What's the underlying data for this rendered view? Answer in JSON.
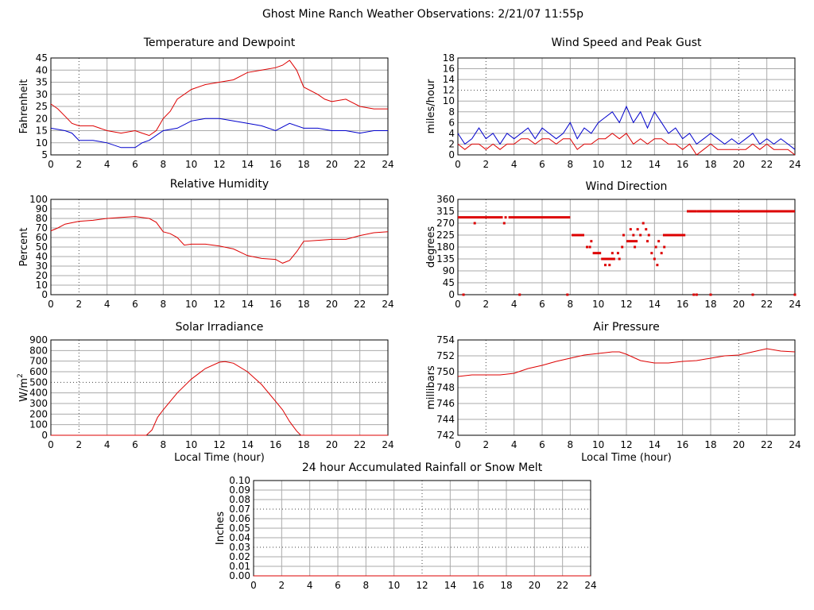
{
  "title": "Ghost Mine Ranch Weather Observations: 2/21/07 11:55p",
  "colors": {
    "grid": "#aaaaaa",
    "red": "#dd0000",
    "blue": "#0000cc",
    "axis": "#000000"
  },
  "chart_data": [
    {
      "id": "temp",
      "type": "line",
      "title": "Temperature and Dewpoint",
      "ylabel": "Fahrenheit",
      "xlabel": "",
      "xlim": [
        0,
        24
      ],
      "ylim": [
        5,
        45
      ],
      "xticks": [
        0,
        2,
        4,
        6,
        8,
        10,
        12,
        14,
        16,
        18,
        20,
        22,
        24
      ],
      "yticks": [
        5,
        10,
        15,
        20,
        25,
        30,
        35,
        40,
        45
      ],
      "series": [
        {
          "color": "red",
          "x": [
            0,
            0.5,
            1,
            1.5,
            2,
            3,
            4,
            5,
            6,
            6.5,
            7,
            7.5,
            8,
            8.5,
            9,
            10,
            11,
            12,
            13,
            14,
            15,
            16,
            16.5,
            17,
            17.5,
            18,
            19,
            19.5,
            20,
            21,
            22,
            23,
            24
          ],
          "values": [
            26,
            24,
            21,
            18,
            17,
            17,
            15,
            14,
            15,
            14,
            13,
            15,
            20,
            23,
            28,
            32,
            34,
            35,
            36,
            39,
            40,
            41,
            42,
            44,
            40,
            33,
            30,
            28,
            27,
            28,
            25,
            24,
            24
          ]
        },
        {
          "color": "blue",
          "x": [
            0,
            1,
            1.5,
            2,
            3,
            4,
            5,
            6,
            6.5,
            7,
            8,
            9,
            10,
            11,
            12,
            13,
            14,
            15,
            16,
            17,
            18,
            19,
            20,
            21,
            22,
            23,
            24
          ],
          "values": [
            16,
            15,
            14,
            11,
            11,
            10,
            8,
            8,
            10,
            11,
            15,
            16,
            19,
            20,
            20,
            19,
            18,
            17,
            15,
            18,
            16,
            16,
            15,
            15,
            14,
            15,
            15
          ]
        }
      ]
    },
    {
      "id": "wind",
      "type": "line",
      "title": "Wind Speed and Peak Gust",
      "ylabel": "miles/hour",
      "xlabel": "",
      "xlim": [
        0,
        24
      ],
      "ylim": [
        0,
        18
      ],
      "xticks": [
        0,
        2,
        4,
        6,
        8,
        10,
        12,
        14,
        16,
        18,
        20,
        22,
        24
      ],
      "yticks": [
        0,
        2,
        4,
        6,
        8,
        10,
        12,
        14,
        16,
        18
      ],
      "series": [
        {
          "color": "blue",
          "x": [
            0,
            0.5,
            1,
            1.5,
            2,
            2.5,
            3,
            3.5,
            4,
            4.5,
            5,
            5.5,
            6,
            6.5,
            7,
            7.5,
            8,
            8.5,
            9,
            9.5,
            10,
            10.5,
            11,
            11.5,
            12,
            12.5,
            13,
            13.5,
            14,
            14.5,
            15,
            15.5,
            16,
            16.5,
            17,
            17.5,
            18,
            18.5,
            19,
            19.5,
            20,
            20.5,
            21,
            21.5,
            22,
            22.5,
            23,
            23.5,
            24
          ],
          "values": [
            4,
            2,
            3,
            5,
            3,
            4,
            2,
            4,
            3,
            4,
            5,
            3,
            5,
            4,
            3,
            4,
            6,
            3,
            5,
            4,
            6,
            7,
            8,
            6,
            9,
            6,
            8,
            5,
            8,
            6,
            4,
            5,
            3,
            4,
            2,
            3,
            4,
            3,
            2,
            3,
            2,
            3,
            4,
            2,
            3,
            2,
            3,
            2,
            1
          ]
        },
        {
          "color": "red",
          "x": [
            0,
            0.5,
            1,
            1.5,
            2,
            2.5,
            3,
            3.5,
            4,
            4.5,
            5,
            5.5,
            6,
            6.5,
            7,
            7.5,
            8,
            8.5,
            9,
            9.5,
            10,
            10.5,
            11,
            11.5,
            12,
            12.5,
            13,
            13.5,
            14,
            14.5,
            15,
            15.5,
            16,
            16.5,
            17,
            17.5,
            18,
            18.5,
            19,
            19.5,
            20,
            20.5,
            21,
            21.5,
            22,
            22.5,
            23,
            23.5,
            24
          ],
          "values": [
            2,
            1,
            2,
            2,
            1,
            2,
            1,
            2,
            2,
            3,
            3,
            2,
            3,
            3,
            2,
            3,
            3,
            1,
            2,
            2,
            3,
            3,
            4,
            3,
            4,
            2,
            3,
            2,
            3,
            3,
            2,
            2,
            1,
            2,
            0,
            1,
            2,
            1,
            1,
            1,
            1,
            1,
            2,
            1,
            2,
            1,
            1,
            1,
            0
          ]
        }
      ]
    },
    {
      "id": "rh",
      "type": "line",
      "title": "Relative Humidity",
      "ylabel": "Percent",
      "xlabel": "",
      "xlim": [
        0,
        24
      ],
      "ylim": [
        0,
        100
      ],
      "xticks": [
        0,
        2,
        4,
        6,
        8,
        10,
        12,
        14,
        16,
        18,
        20,
        22,
        24
      ],
      "yticks": [
        0,
        10,
        20,
        30,
        40,
        50,
        60,
        70,
        80,
        90,
        100
      ],
      "series": [
        {
          "color": "red",
          "x": [
            0,
            0.5,
            1,
            2,
            3,
            4,
            5,
            6,
            7,
            7.5,
            8,
            8.5,
            9,
            9.5,
            10,
            11,
            12,
            13,
            14,
            15,
            16,
            16.5,
            17,
            17.5,
            18,
            19,
            20,
            21,
            22,
            23,
            24
          ],
          "values": [
            67,
            70,
            74,
            77,
            78,
            80,
            81,
            82,
            80,
            76,
            66,
            64,
            60,
            52,
            53,
            53,
            51,
            48,
            41,
            38,
            37,
            33,
            36,
            45,
            56,
            57,
            58,
            58,
            62,
            65,
            66
          ]
        }
      ]
    },
    {
      "id": "dir",
      "type": "scatter",
      "title": "Wind Direction",
      "ylabel": "degrees",
      "xlabel": "",
      "xlim": [
        0,
        24
      ],
      "ylim": [
        0,
        360
      ],
      "xticks": [
        0,
        2,
        4,
        6,
        8,
        10,
        12,
        14,
        16,
        18,
        20,
        22,
        24
      ],
      "yticks": [
        0,
        45,
        90,
        135,
        180,
        225,
        270,
        315,
        360
      ],
      "series": [
        {
          "color": "red",
          "segments": [
            {
              "x": [
                0,
                3.2
              ],
              "y": 292
            },
            {
              "x": [
                3.6,
                8.0
              ],
              "y": 292
            },
            {
              "x": [
                8.1,
                9.0
              ],
              "y": 225
            },
            {
              "x": [
                9.6,
                10.2
              ],
              "y": 157
            },
            {
              "x": [
                10.2,
                11.2
              ],
              "y": 135
            },
            {
              "x": [
                12.0,
                12.8
              ],
              "y": 202
            },
            {
              "x": [
                14.6,
                16.2
              ],
              "y": 225
            },
            {
              "x": [
                16.3,
                17.0
              ],
              "y": 315
            },
            {
              "x": [
                17.0,
                24.0
              ],
              "y": 315
            }
          ],
          "points": [
            [
              0.4,
              0
            ],
            [
              1.2,
              270
            ],
            [
              3.3,
              270
            ],
            [
              3.4,
              292
            ],
            [
              4.4,
              0
            ],
            [
              7.8,
              0
            ],
            [
              9.2,
              180
            ],
            [
              9.4,
              180
            ],
            [
              9.5,
              202
            ],
            [
              10.5,
              112
            ],
            [
              10.8,
              112
            ],
            [
              11.0,
              157
            ],
            [
              11.4,
              157
            ],
            [
              11.5,
              135
            ],
            [
              11.7,
              180
            ],
            [
              11.8,
              225
            ],
            [
              12.3,
              247
            ],
            [
              12.5,
              225
            ],
            [
              12.6,
              180
            ],
            [
              12.8,
              247
            ],
            [
              13.0,
              225
            ],
            [
              13.2,
              270
            ],
            [
              13.4,
              247
            ],
            [
              13.5,
              202
            ],
            [
              13.6,
              225
            ],
            [
              13.8,
              157
            ],
            [
              14.0,
              135
            ],
            [
              14.2,
              112
            ],
            [
              14.1,
              180
            ],
            [
              14.3,
              202
            ],
            [
              14.5,
              157
            ],
            [
              14.7,
              180
            ],
            [
              16.8,
              0
            ],
            [
              17.0,
              0
            ],
            [
              18.0,
              0
            ],
            [
              21.0,
              0
            ],
            [
              24.0,
              0
            ]
          ]
        }
      ]
    },
    {
      "id": "solar",
      "type": "line",
      "title": "Solar Irradiance",
      "ylabel": "W/m²",
      "ylabel_main": "W/m",
      "ylabel_sup": "2",
      "xlabel": "Local Time (hour)",
      "xlim": [
        0,
        24
      ],
      "ylim": [
        0,
        900
      ],
      "xticks": [
        0,
        2,
        4,
        6,
        8,
        10,
        12,
        14,
        16,
        18,
        20,
        22,
        24
      ],
      "yticks": [
        0,
        100,
        200,
        300,
        400,
        500,
        600,
        700,
        800,
        900
      ],
      "series": [
        {
          "color": "red",
          "x": [
            0,
            6.8,
            7.2,
            7.6,
            8,
            9,
            10,
            11,
            12,
            12.4,
            13,
            14,
            15,
            16,
            16.5,
            17,
            17.5,
            17.8,
            24
          ],
          "values": [
            0,
            0,
            50,
            170,
            240,
            400,
            530,
            630,
            690,
            695,
            680,
            600,
            480,
            320,
            240,
            130,
            40,
            0,
            0
          ]
        }
      ]
    },
    {
      "id": "press",
      "type": "line",
      "title": "Air Pressure",
      "ylabel": "millibars",
      "xlabel": "Local Time (hour)",
      "xlim": [
        0,
        24
      ],
      "ylim": [
        742,
        754
      ],
      "xticks": [
        0,
        2,
        4,
        6,
        8,
        10,
        12,
        14,
        16,
        18,
        20,
        22,
        24
      ],
      "yticks": [
        742,
        744,
        746,
        748,
        750,
        752,
        754
      ],
      "series": [
        {
          "color": "red",
          "x": [
            0,
            1,
            2,
            3,
            4,
            5,
            6,
            7,
            8,
            9,
            10,
            11,
            11.5,
            12,
            13,
            14,
            15,
            16,
            17,
            18,
            19,
            20,
            21,
            22,
            23,
            24
          ],
          "values": [
            749.4,
            749.6,
            749.6,
            749.6,
            749.8,
            750.4,
            750.8,
            751.3,
            751.7,
            752.1,
            752.3,
            752.5,
            752.5,
            752.2,
            751.4,
            751.1,
            751.1,
            751.3,
            751.4,
            751.7,
            752.0,
            752.1,
            752.5,
            752.9,
            752.6,
            752.5
          ]
        }
      ]
    },
    {
      "id": "rain",
      "type": "line",
      "title": "24 hour Accumulated Rainfall or Snow Melt",
      "ylabel": "Inches",
      "xlabel": "",
      "xlim": [
        0,
        24
      ],
      "ylim": [
        0,
        0.1
      ],
      "xticks": [
        0,
        2,
        4,
        6,
        8,
        10,
        12,
        14,
        16,
        18,
        20,
        22,
        24
      ],
      "yticks": [
        "0.00",
        "0.01",
        "0.02",
        "0.03",
        "0.04",
        "0.05",
        "0.06",
        "0.07",
        "0.08",
        "0.09",
        "0.10"
      ],
      "series": [
        {
          "color": "red",
          "x": [
            0,
            24
          ],
          "values": [
            0,
            0
          ]
        }
      ]
    }
  ]
}
